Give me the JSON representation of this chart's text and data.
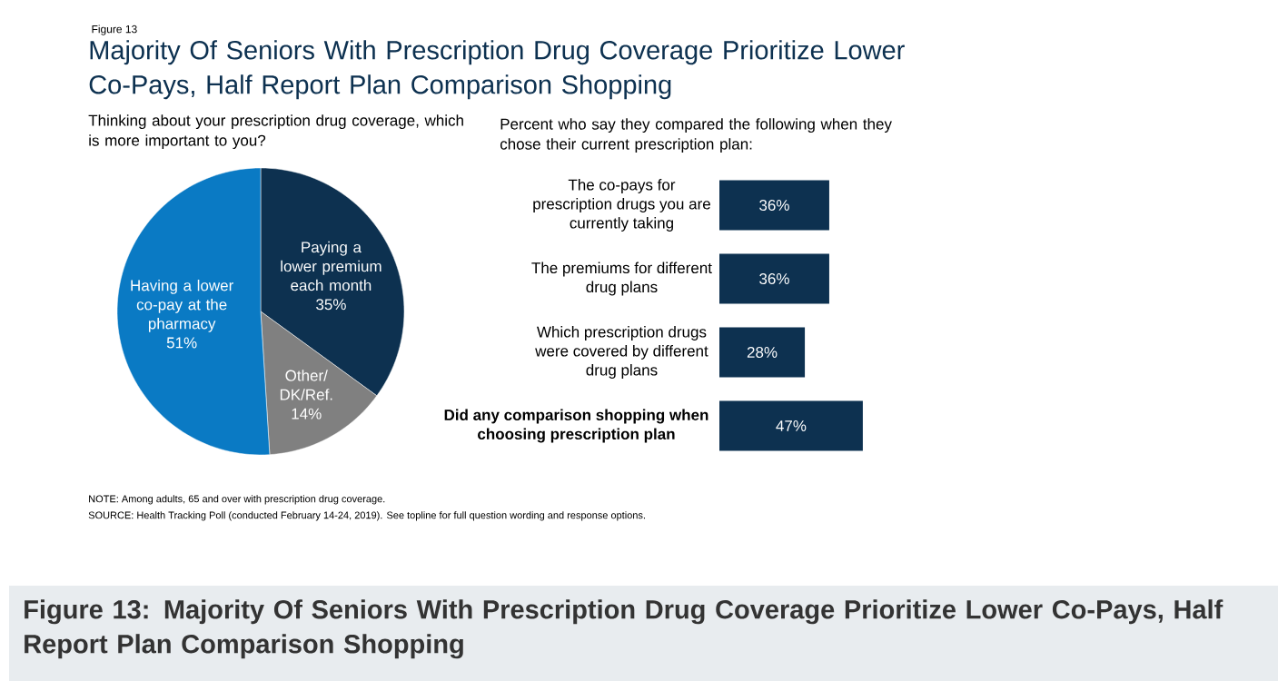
{
  "chart_data": [
    {
      "type": "pie",
      "title": "Majority Of Seniors With Prescription Drug Coverage Prioritize Lower Co-Pays, Half Report Plan Comparison Shopping",
      "subtitle": "Thinking about your prescription drug coverage, which is more important to you?",
      "categories": [
        "Paying a lower premium each month",
        "Other/ DK/Ref.",
        "Having a lower co-pay at the pharmacy"
      ],
      "values": [
        35,
        14,
        51
      ],
      "value_labels": [
        "35%",
        "14%",
        "51%"
      ],
      "colors": [
        "#0d3150",
        "#808080",
        "#0a7ac4"
      ],
      "annotations": [
        "Figure 13",
        "NOTE: Among adults, 65 and over with prescription drug coverage.",
        "SOURCE: Health Tracking Poll (conducted February 14-24, 2019). See topline for full question wording and response options.",
        "Figure 13: Majority Of Seniors With Prescription Drug Coverage Prioritize Lower Co-Pays, Half Report Plan Comparison Shopping"
      ]
    },
    {
      "type": "bar",
      "orientation": "horizontal",
      "title": "Percent who say they compared the following when they chose their current prescription plan:",
      "categories": [
        "The co-pays for prescription drugs you are currently taking",
        "The premiums for different drug plans",
        "Which prescription drugs were covered by different drug plans",
        "Did any comparison shopping when choosing prescription plan"
      ],
      "values": [
        36,
        36,
        28,
        47
      ],
      "value_labels": [
        "36%",
        "36%",
        "28%",
        "47%"
      ],
      "color": "#0d3150",
      "tick_labels": "y"
    }
  ]
}
